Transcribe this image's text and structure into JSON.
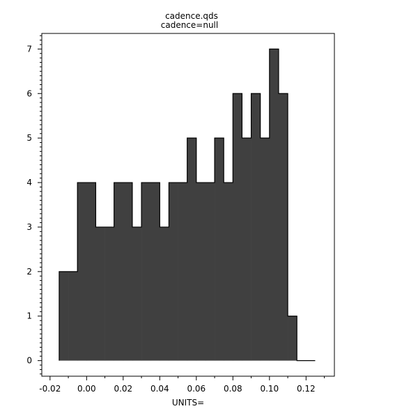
{
  "chart_data": {
    "type": "bar",
    "title": "cadence.qds",
    "subtitle": "cadence=null",
    "xlabel": "UNITS=",
    "ylabel": "",
    "bin_width": 0.005,
    "bin_starts": [
      -0.015,
      -0.01,
      -0.005,
      0.0,
      0.005,
      0.01,
      0.015,
      0.02,
      0.025,
      0.03,
      0.035,
      0.04,
      0.045,
      0.05,
      0.055,
      0.06,
      0.065,
      0.07,
      0.075,
      0.08,
      0.085,
      0.09,
      0.095,
      0.1,
      0.105,
      0.11,
      0.115,
      0.12
    ],
    "values": [
      2,
      2,
      4,
      4,
      3,
      3,
      4,
      4,
      3,
      4,
      4,
      3,
      4,
      4,
      5,
      4,
      4,
      5,
      4,
      6,
      5,
      6,
      5,
      7,
      6,
      1,
      0,
      0
    ],
    "xlim": [
      -0.0245,
      0.1355
    ],
    "ylim": [
      -0.35,
      7.35
    ],
    "x_ticks": [
      "-0.02",
      "0.00",
      "0.02",
      "0.04",
      "0.06",
      "0.08",
      "0.10",
      "0.12"
    ],
    "y_ticks": [
      "0",
      "1",
      "2",
      "3",
      "4",
      "5",
      "6",
      "7"
    ],
    "grid": false,
    "fill_color": "#404040"
  }
}
